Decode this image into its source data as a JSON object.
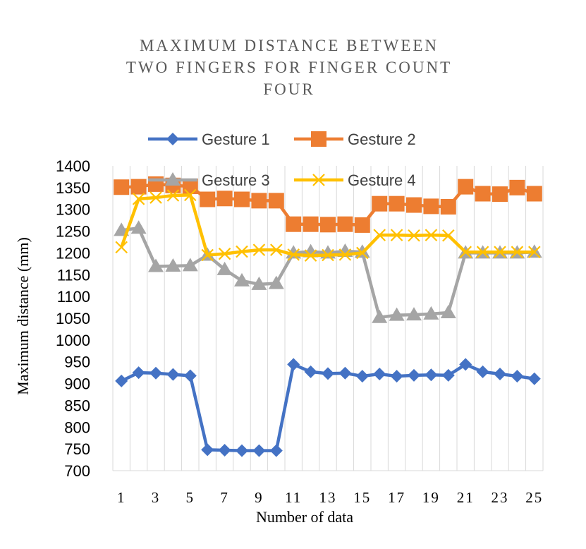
{
  "chart_data": {
    "type": "line",
    "title_lines": [
      "MAXIMUM DISTANCE BETWEEN",
      "TWO FINGERS FOR FINGER COUNT",
      "FOUR"
    ],
    "xlabel": "Number of data",
    "ylabel": "Maximum distance (mm)",
    "ylim": [
      700,
      1400
    ],
    "y_ticks": [
      700,
      750,
      800,
      850,
      900,
      950,
      1000,
      1050,
      1100,
      1150,
      1200,
      1250,
      1300,
      1350,
      1400
    ],
    "x": [
      1,
      2,
      3,
      4,
      5,
      6,
      7,
      8,
      9,
      10,
      11,
      12,
      13,
      14,
      15,
      16,
      17,
      18,
      19,
      20,
      21,
      22,
      23,
      24,
      25
    ],
    "x_tick_labels": [
      "1",
      "3",
      "5",
      "7",
      "9",
      "11",
      "13",
      "15",
      "17",
      "19",
      "21",
      "23",
      "25"
    ],
    "grid": "vertical",
    "legend_position": "top",
    "series": [
      {
        "name": "Gesture 1",
        "color": "#4472C4",
        "marker": "diamond",
        "values": [
          906,
          925,
          924,
          921,
          918,
          748,
          747,
          746,
          746,
          746,
          944,
          927,
          923,
          924,
          917,
          922,
          917,
          919,
          920,
          919,
          944,
          927,
          922,
          917,
          911
        ]
      },
      {
        "name": "Gesture 2",
        "color": "#ED7D31",
        "marker": "square",
        "values": [
          1351,
          1352,
          1358,
          1355,
          1353,
          1323,
          1325,
          1323,
          1320,
          1320,
          1266,
          1266,
          1265,
          1266,
          1264,
          1313,
          1313,
          1310,
          1307,
          1306,
          1352,
          1336,
          1335,
          1350,
          1336
        ]
      },
      {
        "name": "Gesture 3",
        "color": "#A5A5A5",
        "marker": "triangle",
        "values": [
          1252,
          1257,
          1169,
          1170,
          1171,
          1195,
          1162,
          1136,
          1128,
          1130,
          1200,
          1203,
          1200,
          1204,
          1202,
          1052,
          1057,
          1058,
          1060,
          1063,
          1200,
          1200,
          1200,
          1200,
          1202
        ]
      },
      {
        "name": "Gesture 4",
        "color": "#FFC000",
        "marker": "x",
        "values": [
          1213,
          1324,
          1327,
          1332,
          1333,
          1195,
          1198,
          1203,
          1207,
          1207,
          1196,
          1194,
          1195,
          1196,
          1200,
          1241,
          1241,
          1240,
          1241,
          1240,
          1202,
          1202,
          1202,
          1202,
          1202
        ]
      }
    ]
  }
}
